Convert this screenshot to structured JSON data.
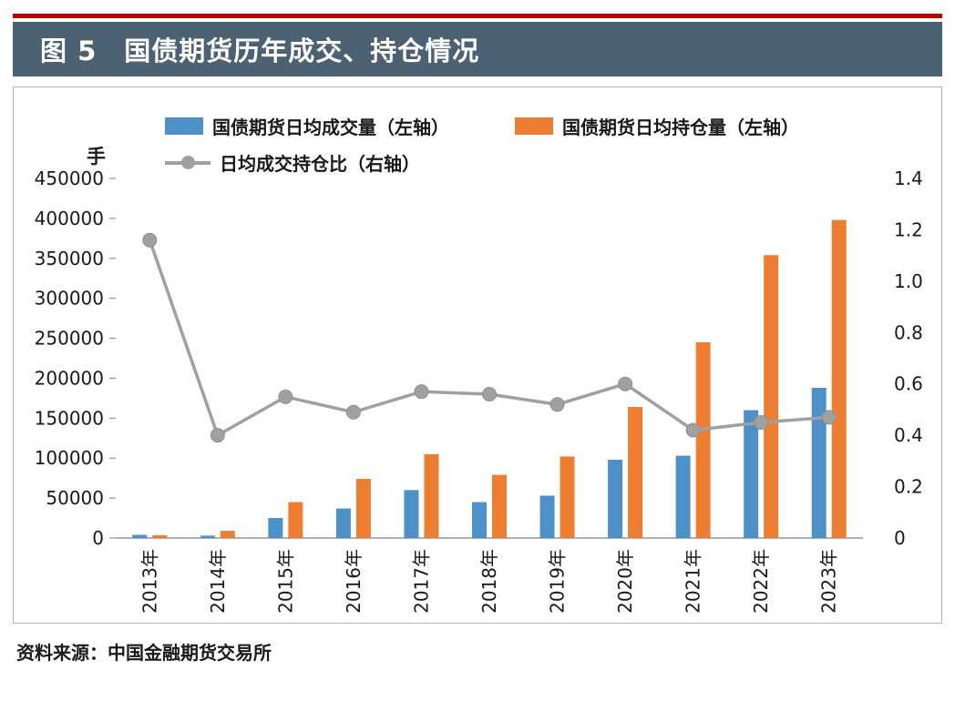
{
  "header": {
    "title": "图 5　国债期货历年成交、持仓情况"
  },
  "source_note": "资料来源：中国金融期货交易所",
  "colors": {
    "accent_red": "#c00000",
    "header_bg": "#4c6172",
    "header_text": "#ffffff",
    "bar_volume": "#4e91c9",
    "bar_open_interest": "#ed7d31",
    "ratio_line": "#a0a0a0",
    "axis": "#808080",
    "text": "#1a1a1a"
  },
  "chart_data": {
    "type": "bar",
    "subtype": "grouped-bars-with-line",
    "title": "图 5　国债期货历年成交、持仓情况",
    "categories": [
      "2013年",
      "2014年",
      "2015年",
      "2016年",
      "2017年",
      "2018年",
      "2019年",
      "2020年",
      "2021年",
      "2022年",
      "2023年"
    ],
    "series": [
      {
        "name": "国债期货日均成交量（左轴）",
        "type": "bar",
        "axis": "left",
        "color": "#4e91c9",
        "values": [
          4000,
          3000,
          25000,
          37000,
          60000,
          45000,
          53000,
          98000,
          103000,
          160000,
          188000
        ]
      },
      {
        "name": "国债期货日均持仓量（左轴）",
        "type": "bar",
        "axis": "left",
        "color": "#ed7d31",
        "values": [
          3500,
          9000,
          45000,
          74000,
          105000,
          79000,
          102000,
          164000,
          245000,
          354000,
          398000
        ]
      },
      {
        "name": "日均成交持仓比（右轴）",
        "type": "line",
        "axis": "right",
        "color": "#a0a0a0",
        "values": [
          1.16,
          0.4,
          0.55,
          0.49,
          0.57,
          0.56,
          0.52,
          0.6,
          0.42,
          0.45,
          0.47
        ]
      }
    ],
    "left_axis": {
      "unit_label": "手",
      "min": 0,
      "max": 450000,
      "step": 50000
    },
    "right_axis": {
      "min": 0,
      "max": 1.4,
      "step": 0.2
    },
    "legend_position": "top",
    "gridlines": false
  }
}
